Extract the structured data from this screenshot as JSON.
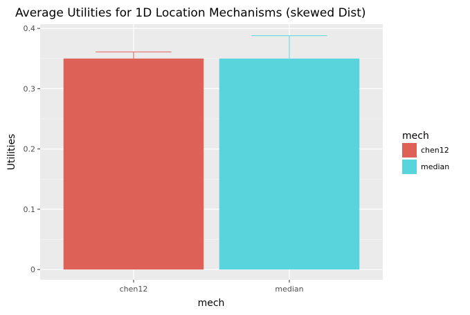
{
  "chart_data": {
    "type": "bar",
    "title": "Average Utilities for 1D Location Mechanisms (skewed Dist)",
    "xlabel": "mech",
    "ylabel": "Utilities",
    "categories": [
      "chen12",
      "median"
    ],
    "values": [
      0.35,
      0.35
    ],
    "error_upper": [
      0.361,
      0.388
    ],
    "ylim": [
      -0.017,
      0.407
    ],
    "yticks": [
      0,
      0.1,
      0.2,
      0.3,
      0.4
    ],
    "ytick_labels": [
      "0",
      "0.1",
      "0.2",
      "0.3",
      "0.4"
    ],
    "grid": true,
    "legend": {
      "title": "mech",
      "placement": "right",
      "entries": [
        "chen12",
        "median"
      ]
    },
    "colors": {
      "chen12": "#dd6157",
      "median": "#57d4dc",
      "panel": "#ebebeb",
      "grid": "#ffffff"
    }
  }
}
